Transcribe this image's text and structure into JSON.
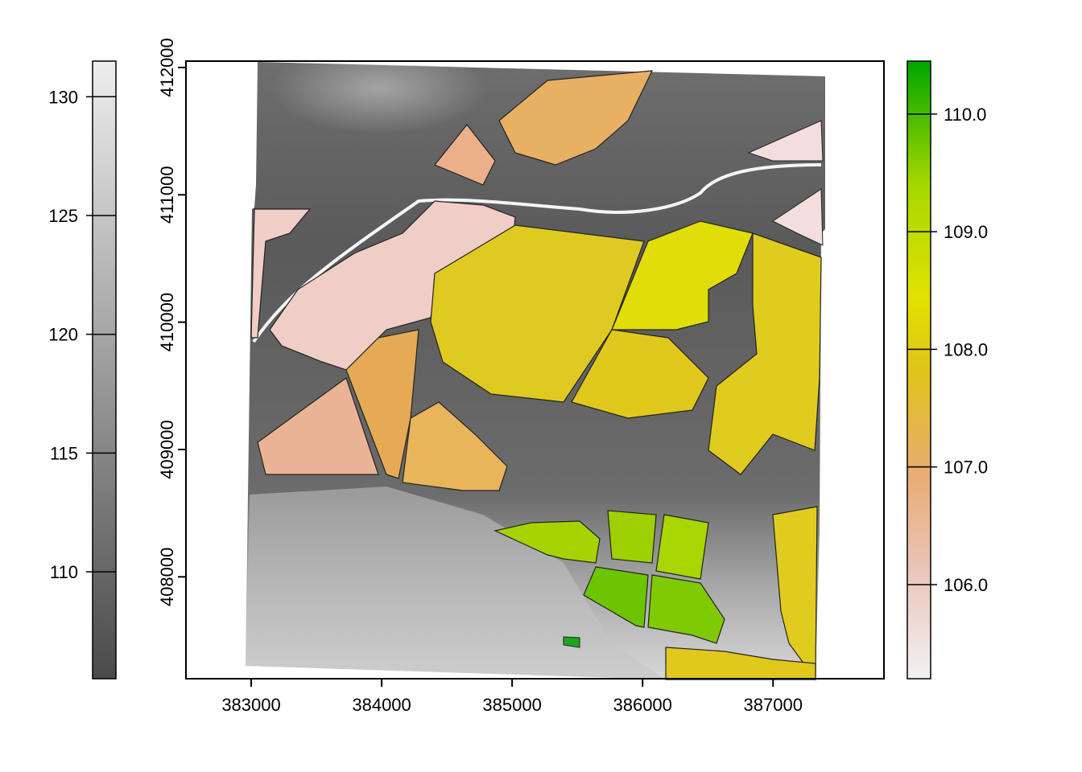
{
  "map": {
    "x_axis": {
      "ticks": [
        383000,
        384000,
        385000,
        386000,
        387000
      ],
      "tick_labels": [
        "383000",
        "384000",
        "385000",
        "386000",
        "387000"
      ]
    },
    "y_axis": {
      "ticks": [
        408000,
        409000,
        410000,
        411000,
        412000
      ],
      "tick_labels": [
        "408000",
        "409000",
        "410000",
        "411000",
        "412000"
      ]
    },
    "left_legend": {
      "type": "grayscale-elevation",
      "ticks": [
        110,
        115,
        120,
        125,
        130
      ],
      "tick_labels": [
        "110",
        "115",
        "120",
        "125",
        "130"
      ],
      "range": [
        105.5,
        131.5
      ],
      "colors": [
        "#4a4a4a",
        "#eeeeee"
      ]
    },
    "right_legend": {
      "type": "terrain-color",
      "ticks": [
        106,
        107,
        108,
        109,
        110
      ],
      "tick_labels": [
        "106.0",
        "107.0",
        "108.0",
        "109.0",
        "110.0"
      ],
      "range": [
        105.2,
        110.45
      ],
      "colors": [
        "#f2f2f2",
        "#eac3b8",
        "#e8ad74",
        "#e0c418",
        "#e2e200",
        "#a6d800",
        "#00a600"
      ]
    }
  },
  "chart_data": {
    "type": "heatmap",
    "x": [
      383000,
      384000,
      385000,
      386000,
      387000
    ],
    "y": [
      408000,
      409000,
      410000,
      411000,
      412000
    ],
    "xlim": [
      382500,
      387850
    ],
    "ylim": [
      407200,
      412050
    ],
    "legends": [
      {
        "ticks": [
          110,
          115,
          120,
          125,
          130
        ],
        "range": [
          105.5,
          131.5
        ]
      },
      {
        "ticks": [
          106,
          107,
          108,
          109,
          110
        ],
        "range": [
          105.2,
          110.45
        ]
      }
    ],
    "grid": false
  }
}
